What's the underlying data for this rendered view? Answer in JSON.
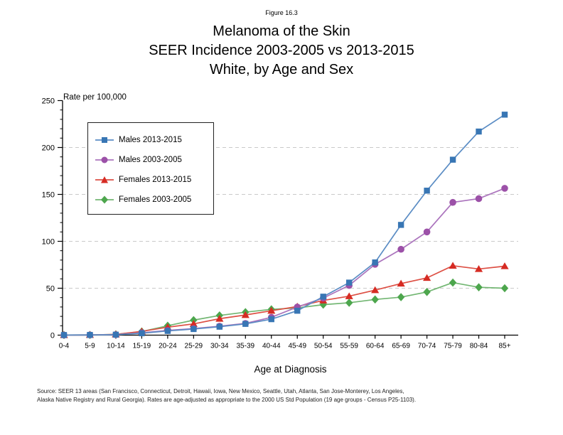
{
  "figure_label": "Figure 16.3",
  "title_lines": [
    "Melanoma of the Skin",
    "SEER Incidence 2003-2005 vs 2013-2015",
    "White, by Age and Sex"
  ],
  "y_axis_label": "Rate per 100,000",
  "x_axis_label": "Age at Diagnosis",
  "source_lines": [
    "Source: SEER 13 areas (San Francisco, Connecticut, Detroit, Hawaii, Iowa, New Mexico, Seattle, Utah, Atlanta, San Jose-Monterey, Los Angeles,",
    "Alaska Native Registry and Rural Georgia). Rates are age-adjusted as appropriate to the 2000 US Std Population (19 age groups - Census P25-1103)."
  ],
  "chart_data": {
    "type": "line",
    "title": "Melanoma of the Skin / SEER Incidence 2003-2005 vs 2013-2015 / White, by Age and Sex",
    "xlabel": "Age at Diagnosis",
    "ylabel": "Rate per 100,000",
    "x": [
      "0-4",
      "5-9",
      "10-14",
      "15-19",
      "20-24",
      "25-29",
      "30-34",
      "35-39",
      "40-44",
      "45-49",
      "50-54",
      "55-59",
      "60-64",
      "65-69",
      "70-74",
      "75-79",
      "80-84",
      "85+"
    ],
    "ylim": [
      0,
      250
    ],
    "y_ticks": [
      0,
      50,
      100,
      150,
      200,
      250
    ],
    "y_minor_tick_step": 10,
    "gridlines": [
      50,
      100,
      150,
      200
    ],
    "grid_style": "dashed",
    "legend_position": "upper-left",
    "series": [
      {
        "name": "Males 2013-2015",
        "marker": "square",
        "color": "#3876b4",
        "line_color": "#5a8cc4",
        "values": [
          0.1,
          0.2,
          0.5,
          2.0,
          4.5,
          6.5,
          9.0,
          12.0,
          17.0,
          26.0,
          41.0,
          56.0,
          77.5,
          117.5,
          154.0,
          187.0,
          217.0,
          235.0
        ]
      },
      {
        "name": "Males 2003-2005",
        "marker": "circle",
        "color": "#9c51a8",
        "line_color": "#ab74bd",
        "values": [
          0.1,
          0.2,
          0.5,
          2.5,
          5.0,
          7.0,
          9.5,
          12.5,
          19.0,
          30.0,
          39.5,
          53.0,
          75.5,
          91.5,
          110.0,
          141.5,
          145.5,
          156.5
        ]
      },
      {
        "name": "Females 2013-2015",
        "marker": "triangle",
        "color": "#d62b23",
        "line_color": "#dd4f44",
        "values": [
          0.1,
          0.2,
          0.8,
          4.0,
          8.5,
          12.0,
          17.5,
          21.5,
          26.0,
          30.5,
          37.0,
          41.5,
          48.0,
          55.0,
          61.0,
          74.0,
          70.5,
          73.5
        ]
      },
      {
        "name": "Females 2003-2005",
        "marker": "diamond",
        "color": "#4da64d",
        "line_color": "#72b672",
        "values": [
          0.1,
          0.2,
          0.8,
          3.8,
          10.0,
          16.0,
          21.0,
          24.5,
          27.5,
          29.0,
          32.5,
          34.5,
          38.0,
          40.5,
          46.0,
          56.0,
          51.0,
          50.0
        ]
      }
    ]
  }
}
